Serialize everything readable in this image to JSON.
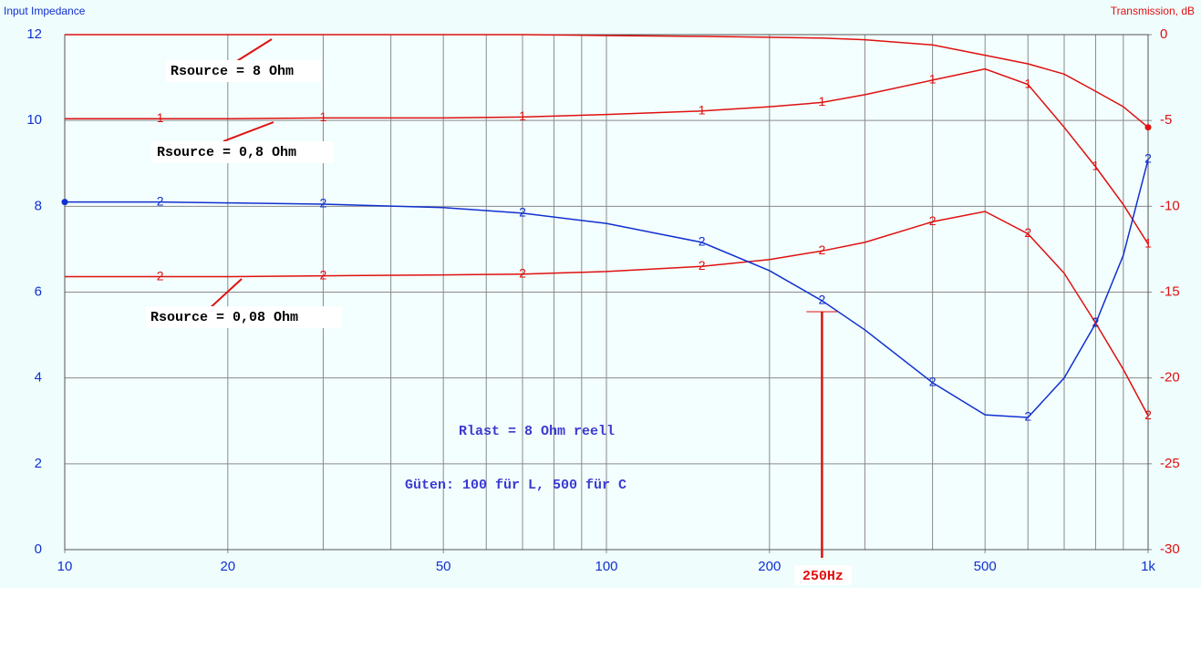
{
  "chart_data": {
    "type": "line",
    "log_x": true,
    "grid": true,
    "y_label": "Input Impedance",
    "y2_label": "Transmission, dB",
    "x": [
      10,
      15,
      20,
      30,
      50,
      70,
      100,
      150,
      200,
      250,
      300,
      400,
      500,
      600,
      700,
      800,
      900,
      1000
    ],
    "xlim": [
      10,
      1000
    ],
    "xticks": [
      10,
      20,
      50,
      100,
      200,
      500,
      {
        "value": 1000,
        "label": "1k"
      }
    ],
    "xgrid": [
      10,
      20,
      30,
      40,
      50,
      60,
      70,
      80,
      90,
      100,
      200,
      300,
      400,
      500,
      600,
      700,
      800,
      900,
      1000
    ],
    "ylim": [
      0,
      12
    ],
    "yticks": [
      0,
      2,
      4,
      6,
      8,
      10,
      12
    ],
    "y2lim": [
      -30,
      0
    ],
    "y2ticks": [
      -30,
      -25,
      -20,
      -15,
      -10,
      -5,
      0
    ],
    "series": [
      {
        "color": "#e01010",
        "axis": "y2",
        "values": [
          0,
          0,
          0,
          0,
          0,
          0,
          -0.05,
          -0.1,
          -0.15,
          -0.2,
          -0.3,
          -0.6,
          -1.2,
          -1.7,
          -2.3,
          -3.3,
          -4.2,
          -5.4
        ]
      },
      {
        "color": "#e01010",
        "axis": "y2",
        "marker": "1",
        "values": [
          -4.9,
          -4.9,
          -4.9,
          -4.85,
          -4.85,
          -4.8,
          -4.65,
          -4.45,
          -4.2,
          -3.95,
          -3.5,
          -2.65,
          -2.0,
          -2.9,
          -5.4,
          -7.7,
          -9.9,
          -12.2
        ]
      },
      {
        "color": "#e01010",
        "axis": "y2",
        "marker": "2",
        "values": [
          -14.1,
          -14.1,
          -14.1,
          -14.05,
          -14.0,
          -13.95,
          -13.8,
          -13.5,
          -13.1,
          -12.6,
          -12.1,
          -10.9,
          -10.3,
          -11.6,
          -13.9,
          -16.8,
          -19.5,
          -22.2
        ]
      },
      {
        "color": "#1030d0",
        "marker": "2",
        "values": [
          8.1,
          8.1,
          8.08,
          8.05,
          7.97,
          7.84,
          7.6,
          7.16,
          6.5,
          5.8,
          5.12,
          3.89,
          3.14,
          3.08,
          4.0,
          5.27,
          6.86,
          9.09
        ]
      }
    ],
    "annotations": [
      "Rsource = 8 Ohm",
      "Rsource = 0,8 Ohm",
      "Rsource = 0,08 Ohm",
      "Rlast = 8 Ohm reell",
      "Güten:  100 für L,  500 für C"
    ],
    "cursor": {
      "x": 250,
      "label": "250Hz"
    }
  }
}
